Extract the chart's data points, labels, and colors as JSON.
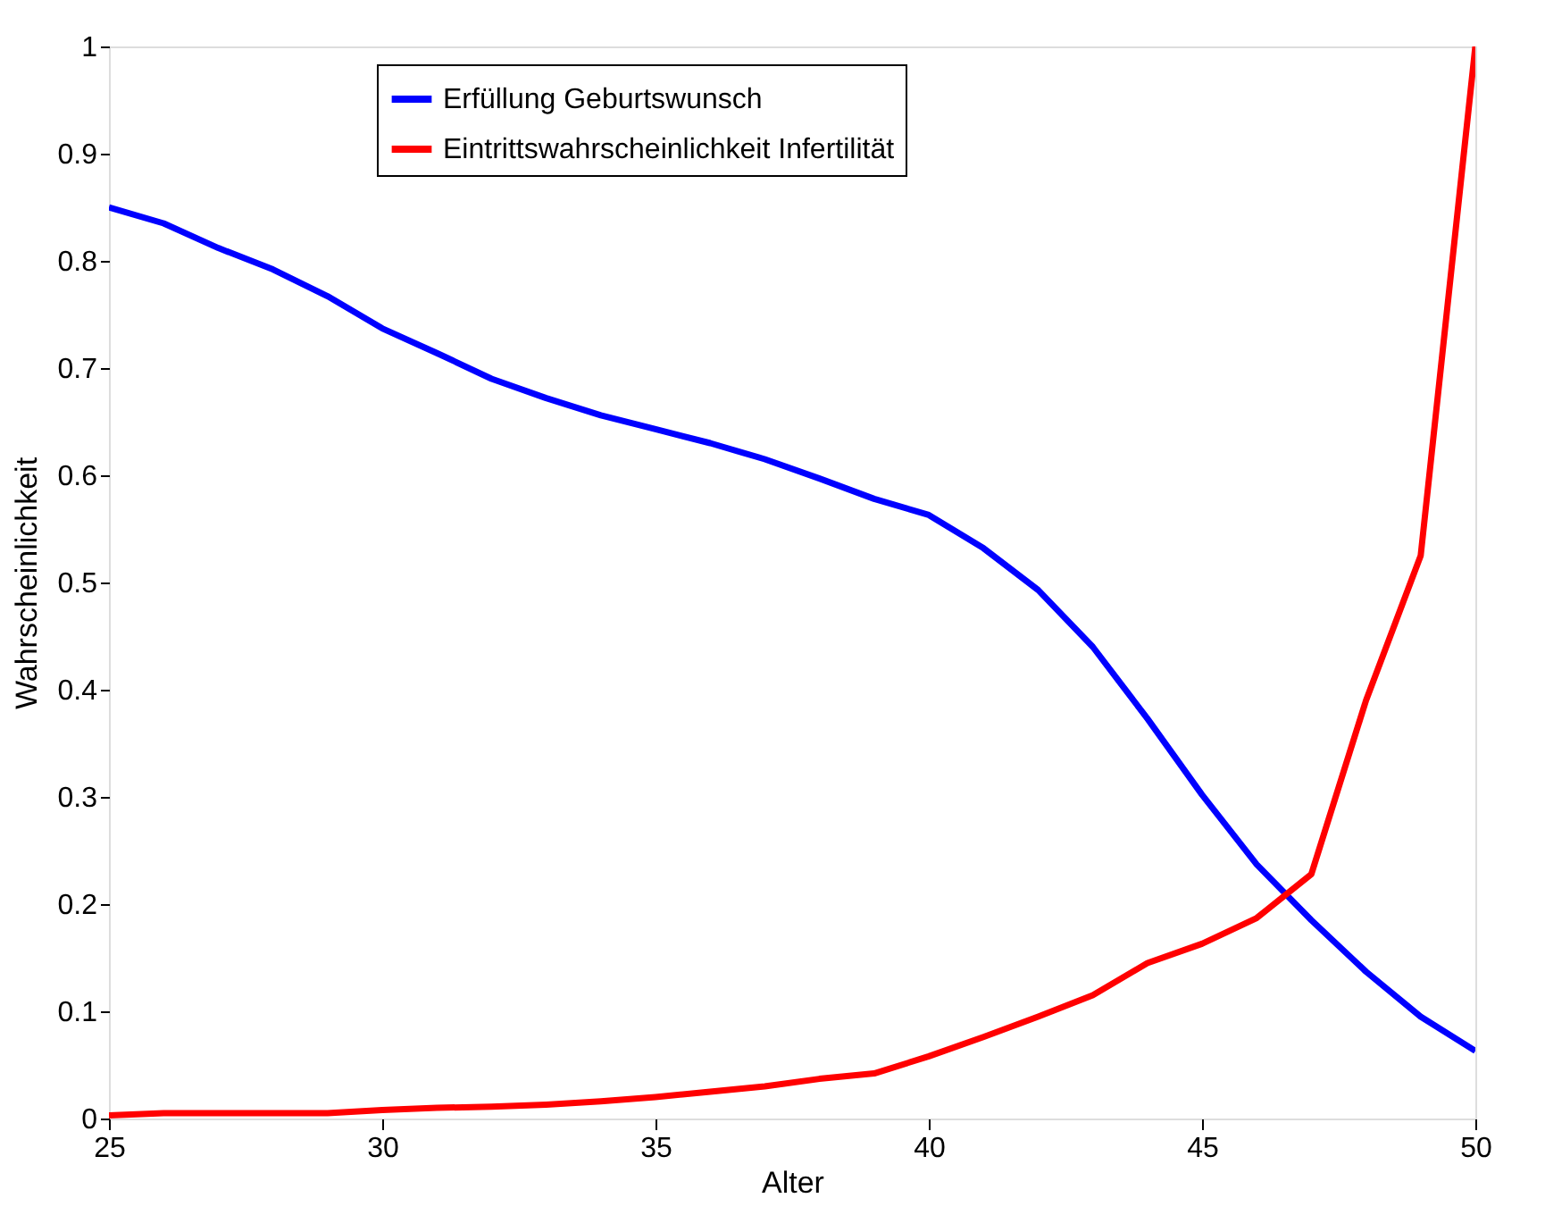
{
  "chart_data": {
    "type": "line",
    "xlabel": "Alter",
    "ylabel": "Wahrscheinlichkeit",
    "x": [
      25,
      26,
      27,
      28,
      29,
      30,
      31,
      32,
      33,
      34,
      35,
      36,
      37,
      38,
      39,
      40,
      41,
      42,
      43,
      44,
      45,
      46,
      47,
      48,
      49,
      50
    ],
    "xlim": [
      25,
      50
    ],
    "xticks": [
      25,
      30,
      35,
      40,
      45,
      50
    ],
    "ylim": [
      0,
      1
    ],
    "yticks": [
      0,
      0.1,
      0.2,
      0.3,
      0.4,
      0.5,
      0.6,
      0.7,
      0.8,
      0.9,
      1
    ],
    "grid": false,
    "legend": "top",
    "marker": "none",
    "line_style": "solid",
    "series": [
      {
        "name": "Erfüllung Geburtswunsch",
        "color": "#0000ff",
        "values": [
          0.85,
          0.835,
          0.812,
          0.792,
          0.767,
          0.737,
          0.714,
          0.69,
          0.672,
          0.656,
          0.643,
          0.63,
          0.615,
          0.597,
          0.578,
          0.563,
          0.532,
          0.493,
          0.44,
          0.373,
          0.302,
          0.237,
          0.185,
          0.137,
          0.095,
          0.063
        ]
      },
      {
        "name": "Eintrittswahrscheinlichkeit Infertilität",
        "color": "#ff0000",
        "values": [
          0.003,
          0.005,
          0.005,
          0.005,
          0.005,
          0.008,
          0.01,
          0.011,
          0.013,
          0.016,
          0.02,
          0.025,
          0.03,
          0.037,
          0.042,
          0.058,
          0.076,
          0.095,
          0.115,
          0.145,
          0.163,
          0.187,
          0.228,
          0.39,
          0.525,
          1.0
        ]
      }
    ]
  }
}
